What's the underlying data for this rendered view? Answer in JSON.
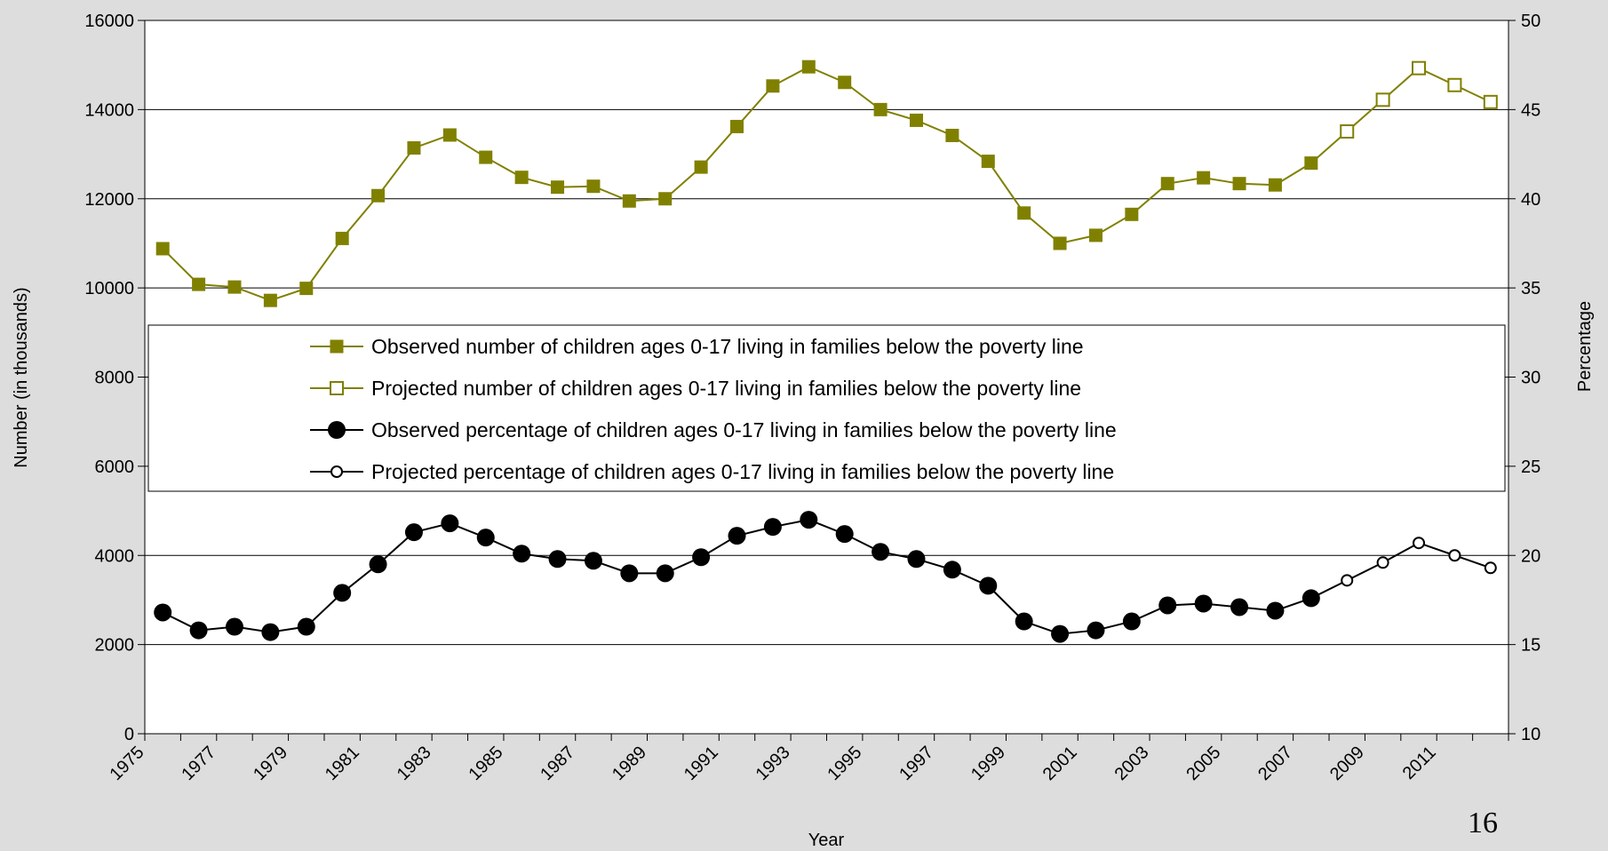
{
  "page_number": "16",
  "chart_data": {
    "type": "line",
    "xlabel": "Year",
    "ylabel_left": "Number (in thousands)",
    "ylabel_right": "Percentage",
    "y_left_range": [
      0,
      16000
    ],
    "y_left_ticks": [
      0,
      2000,
      4000,
      6000,
      8000,
      10000,
      12000,
      14000,
      16000
    ],
    "y_right_range": [
      10,
      50
    ],
    "y_right_ticks": [
      10,
      15,
      20,
      25,
      30,
      35,
      40,
      45,
      50
    ],
    "x_range": [
      1975,
      2013
    ],
    "x_tick_labels": [
      "1975",
      "1977",
      "1979",
      "1981",
      "1983",
      "1985",
      "1987",
      "1989",
      "1991",
      "1993",
      "1995",
      "1997",
      "1999",
      "2001",
      "2003",
      "2005",
      "2007",
      "2009",
      "2011"
    ],
    "grid": "horizontal",
    "legend_placement": "center-middle",
    "colors": {
      "number_series": "#808000",
      "percentage_series": "#000000",
      "background": "#dddddd"
    },
    "series": [
      {
        "name": "Observed number of children ages 0-17 living in families below the poverty line",
        "axis": "left",
        "marker": "filled-square",
        "x": [
          1975,
          1976,
          1977,
          1978,
          1979,
          1980,
          1981,
          1982,
          1983,
          1984,
          1985,
          1986,
          1987,
          1988,
          1989,
          1990,
          1991,
          1992,
          1993,
          1994,
          1995,
          1996,
          1997,
          1998,
          1999,
          2000,
          2001,
          2002,
          2003,
          2004,
          2005,
          2006,
          2007
        ],
        "y": [
          10880,
          10080,
          10020,
          9720,
          9990,
          11110,
          12070,
          13140,
          13430,
          12930,
          12480,
          12260,
          12280,
          11950,
          12000,
          12710,
          13620,
          14530,
          14960,
          14610,
          14000,
          13760,
          13420,
          12840,
          11680,
          11000,
          11180,
          11650,
          12340,
          12470,
          12340,
          12310,
          12800
        ]
      },
      {
        "name": "Projected number of children ages 0-17 living in families below the poverty line",
        "axis": "left",
        "marker": "open-square",
        "x": [
          2008,
          2009,
          2010,
          2011,
          2012
        ],
        "y": [
          13510,
          14220,
          14930,
          14550,
          14170
        ]
      },
      {
        "name": "Observed percentage of children ages 0-17 living in families below the poverty line",
        "axis": "right",
        "marker": "filled-circle",
        "x": [
          1975,
          1976,
          1977,
          1978,
          1979,
          1980,
          1981,
          1982,
          1983,
          1984,
          1985,
          1986,
          1987,
          1988,
          1989,
          1990,
          1991,
          1992,
          1993,
          1994,
          1995,
          1996,
          1997,
          1998,
          1999,
          2000,
          2001,
          2002,
          2003,
          2004,
          2005,
          2006,
          2007
        ],
        "y": [
          16.8,
          15.8,
          16.0,
          15.7,
          16.0,
          17.9,
          19.5,
          21.3,
          21.8,
          21.0,
          20.1,
          19.8,
          19.7,
          19.0,
          19.0,
          19.9,
          21.1,
          21.6,
          22.0,
          21.2,
          20.2,
          19.8,
          19.2,
          18.3,
          16.3,
          15.6,
          15.8,
          16.3,
          17.2,
          17.3,
          17.1,
          16.9,
          17.6
        ]
      },
      {
        "name": "Projected percentage of children ages 0-17 living in families below the poverty line",
        "axis": "right",
        "marker": "open-circle",
        "x": [
          2008,
          2009,
          2010,
          2011,
          2012
        ],
        "y": [
          18.6,
          19.6,
          20.7,
          20.0,
          19.3
        ]
      }
    ]
  }
}
